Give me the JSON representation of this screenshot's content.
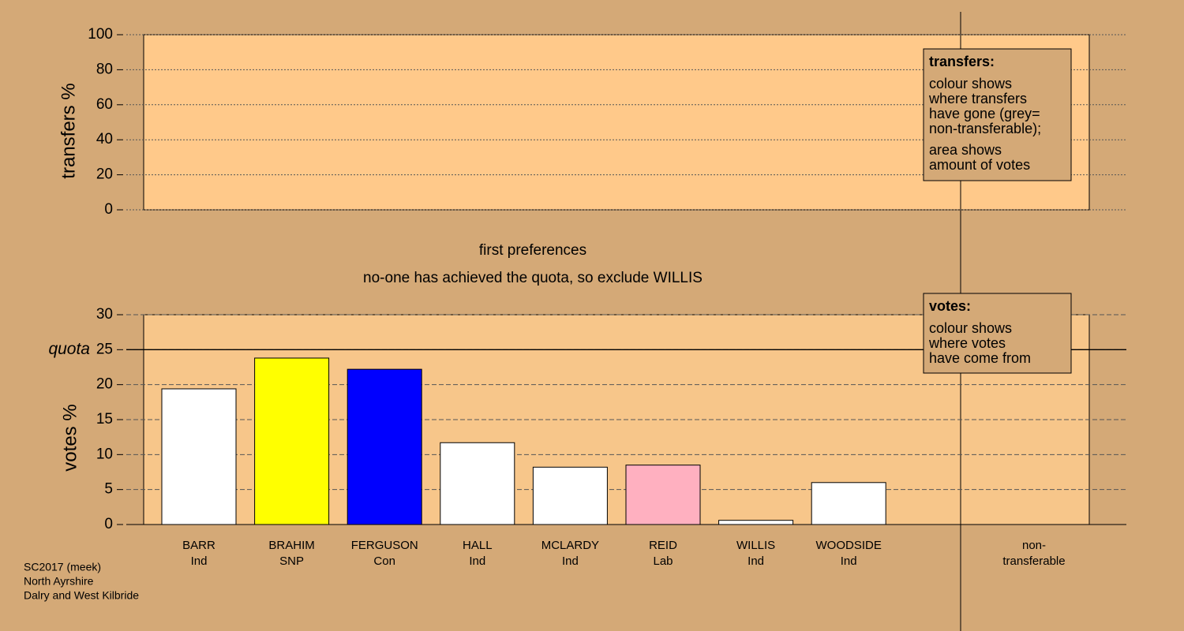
{
  "chart_data": [
    {
      "type": "bar",
      "y_label": "transfers %",
      "ylim": [
        0,
        100
      ],
      "yticks": [
        0,
        20,
        40,
        60,
        80,
        100
      ],
      "grid": true
    },
    {
      "type": "bar",
      "title": "first preferences",
      "subtitle": "no-one has achieved the quota, so exclude WILLIS",
      "y_label": "votes %",
      "categories": [
        "BARR",
        "BRAHIM",
        "FERGUSON",
        "HALL",
        "MCLARDY",
        "REID",
        "WILLIS",
        "WOODSIDE"
      ],
      "parties": [
        "Ind",
        "SNP",
        "Con",
        "Ind",
        "Ind",
        "Lab",
        "Ind",
        "Ind"
      ],
      "values": [
        19.4,
        23.8,
        22.2,
        11.7,
        8.2,
        8.5,
        0.6,
        6.0
      ],
      "colors": [
        "#ffffff",
        "#ffff00",
        "#0000ff",
        "#ffffff",
        "#ffffff",
        "#ffb0c0",
        "#ffffff",
        "#ffffff"
      ],
      "ylim": [
        0,
        30
      ],
      "yticks": [
        0,
        5,
        10,
        15,
        20,
        25,
        30
      ],
      "grid": true,
      "quota": 25,
      "quota_label": "quota"
    }
  ],
  "non_transferable_label": [
    "non-",
    "transferable"
  ],
  "legends": {
    "transfers": {
      "title": "transfers:",
      "lines": [
        "colour shows",
        "where transfers",
        "have gone (grey=",
        "non-transferable);",
        "area shows",
        "amount of votes"
      ]
    },
    "votes": {
      "title": "votes:",
      "lines": [
        "colour shows",
        "where votes",
        "have come from"
      ]
    }
  },
  "footer": [
    "SC2017 (meek)",
    "North Ayrshire",
    "Dalry and West Kilbride"
  ]
}
